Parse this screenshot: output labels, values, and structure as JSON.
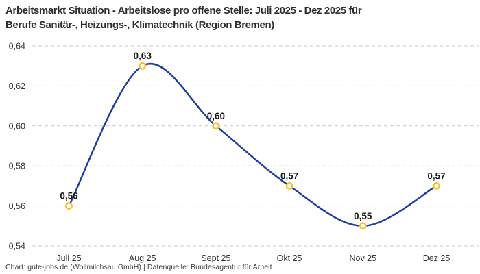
{
  "title_lines": [
    "Arbeitsmarkt Situation - Arbeitslose pro offene Stelle: Juli 2025 - Dez 2025 für",
    "Berufe Sanitär-, Heizungs-, Klimatechnik (Region Bremen)"
  ],
  "footer": "Chart: gute-jobs.de (Wollmilchsau GmbH) | Datenquelle: Bundesagentur für Arbeit",
  "chart_data": {
    "type": "line",
    "title": "Arbeitsmarkt Situation - Arbeitslose pro offene Stelle: Juli 2025 - Dez 2025 für Berufe Sanitär-, Heizungs-, Klimatechnik (Region Bremen)",
    "categories": [
      "Juli 25",
      "Aug 25",
      "Sept 25",
      "Okt 25",
      "Nov 25",
      "Dez 25"
    ],
    "values": [
      0.56,
      0.63,
      0.6,
      0.57,
      0.55,
      0.57
    ],
    "point_labels": [
      "0,56",
      "0,63",
      "0,60",
      "0,57",
      "0,55",
      "0,57"
    ],
    "xlabel": "",
    "ylabel": "",
    "ylim": [
      0.54,
      0.64
    ],
    "yticks": [
      0.64,
      0.62,
      0.6,
      0.58,
      0.56,
      0.54
    ],
    "ytick_labels": [
      "0,64",
      "0,62",
      "0,60",
      "0,58",
      "0,56",
      "0,54"
    ],
    "grid": "horizontal-dashed",
    "legend": "none",
    "colors": {
      "line": "#1f3d9e",
      "marker_ring": "#f8c12c",
      "marker_fill": "#ffffff",
      "gridline": "#c9c9c9"
    }
  }
}
